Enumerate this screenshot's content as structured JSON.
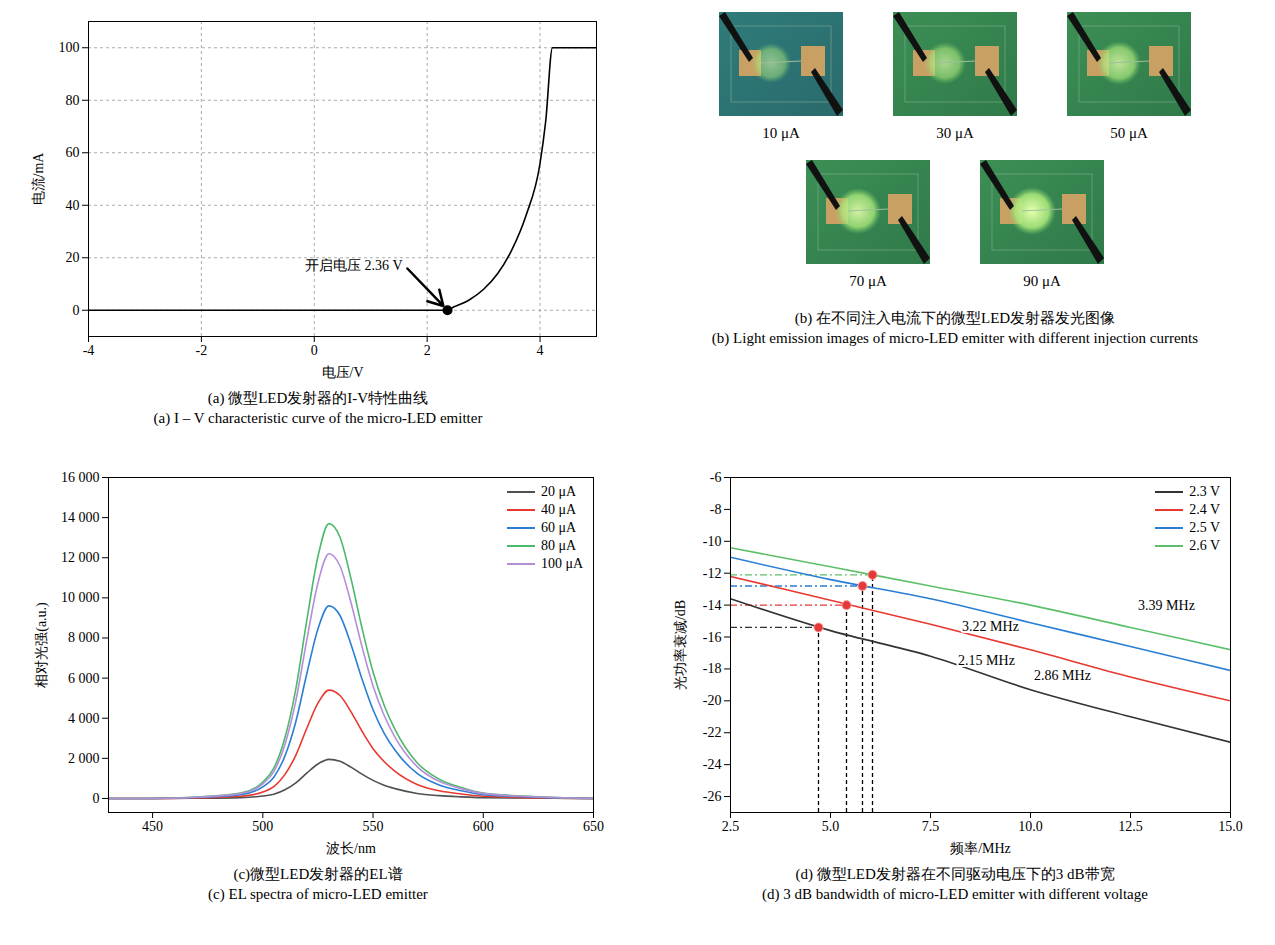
{
  "chart_data": [
    {
      "type": "line",
      "title": "(a) 微型LED发射器的I-V特性曲线",
      "subtitle": "(a) I – V characteristic curve of the micro-LED emitter",
      "xlabel": "电压/V",
      "ylabel": "电流/mA",
      "x": [
        -4,
        2.3,
        2.5,
        2.75,
        3.0,
        3.25,
        3.5,
        3.75,
        4.0,
        4.1,
        4.22,
        5
      ],
      "values": [
        0,
        0,
        1.5,
        4,
        8,
        14,
        23,
        36,
        56,
        72,
        100,
        100
      ],
      "color": "#000000",
      "xlim": [
        -4,
        5
      ],
      "xticks": [
        -4,
        -2,
        0,
        2,
        4
      ],
      "ylim": [
        -10,
        110
      ],
      "yticks": [
        0,
        20,
        40,
        60,
        80,
        100
      ],
      "grid": true,
      "annotations": [
        {
          "text": "开启电压 2.36 V",
          "x": 2.36,
          "y": 0,
          "text_x": 1.6,
          "text_y": 17
        }
      ]
    },
    {
      "type": "images",
      "title": "(b) 在不同注入电流下的微型LED发射器发光图像",
      "subtitle": "(b) Light emission images of micro-LED emitter with different injection currents",
      "images": [
        "10 μA",
        "30 μA",
        "50 μA",
        "70 μA",
        "90 μA"
      ]
    },
    {
      "type": "line",
      "title": "(c)微型LED发射器的EL谱",
      "subtitle": "(c) EL spectra of micro-LED emitter",
      "xlabel": "波长/nm",
      "ylabel": "相对光强(a.u.)",
      "x": [
        430,
        450,
        470,
        490,
        500,
        505,
        510,
        515,
        520,
        525,
        530,
        535,
        540,
        545,
        550,
        555,
        560,
        570,
        580,
        590,
        600,
        620,
        650
      ],
      "series": [
        {
          "name": "20 μA",
          "color": "#505050",
          "values": [
            0,
            0,
            10,
            40,
            120,
            210,
            430,
            780,
            1270,
            1720,
            1950,
            1850,
            1560,
            1210,
            900,
            660,
            490,
            250,
            140,
            80,
            40,
            20,
            0
          ]
        },
        {
          "name": "40 μA",
          "color": "#e8382f",
          "values": [
            0,
            0,
            30,
            110,
            320,
            590,
            1190,
            2160,
            3510,
            4750,
            5400,
            5130,
            4320,
            3350,
            2480,
            1840,
            1350,
            700,
            380,
            220,
            110,
            40,
            0
          ]
        },
        {
          "name": "60 μA",
          "color": "#2a7fd4",
          "values": [
            0,
            0,
            50,
            190,
            580,
            1060,
            2110,
            3840,
            6240,
            8450,
            9600,
            9120,
            7680,
            5950,
            4420,
            3260,
            2400,
            1250,
            670,
            380,
            190,
            80,
            0
          ]
        },
        {
          "name": "80 μA",
          "color": "#4cb86a",
          "values": [
            0,
            0,
            70,
            270,
            820,
            1510,
            3010,
            5480,
            8910,
            12060,
            13700,
            13020,
            10960,
            8490,
            6300,
            4660,
            3430,
            1780,
            960,
            550,
            270,
            110,
            0
          ]
        },
        {
          "name": "100 μA",
          "color": "#b58ed8",
          "values": [
            0,
            0,
            60,
            240,
            730,
            1340,
            2680,
            4880,
            7930,
            10740,
            12200,
            11590,
            9760,
            7560,
            5610,
            4150,
            3050,
            1590,
            850,
            490,
            240,
            100,
            0
          ]
        }
      ],
      "xlim": [
        430,
        650
      ],
      "xticks": [
        450,
        500,
        550,
        600,
        650
      ],
      "ylim": [
        -700,
        16000
      ],
      "yticks": [
        0,
        {
          "value": 2000,
          "label": "2 000"
        },
        {
          "value": 4000,
          "label": "4 000"
        },
        {
          "value": 6000,
          "label": "6 000"
        },
        {
          "value": 8000,
          "label": "8 000"
        },
        {
          "value": 10000,
          "label": "10 000"
        },
        {
          "value": 12000,
          "label": "12 000"
        },
        {
          "value": 14000,
          "label": "14 000"
        },
        {
          "value": 16000,
          "label": "16 000"
        }
      ],
      "grid": false,
      "legend": "top-right"
    },
    {
      "type": "line",
      "title": "(d) 微型LED发射器在不同驱动电压下的3 dB带宽",
      "subtitle": "(d) 3 dB bandwidth of micro-LED emitter with different voltage",
      "xlabel": "频率/MHz",
      "ylabel": "光功率衰减/dB",
      "x": [
        2.5,
        5,
        7.5,
        10,
        12.5,
        15
      ],
      "series": [
        {
          "name": "2.3 V",
          "color": "#333333",
          "values": [
            -13.6,
            -15.6,
            -17.2,
            -19.3,
            -21.0,
            -22.6
          ],
          "point": {
            "x": 4.7,
            "y": -15.4
          }
        },
        {
          "name": "2.4 V",
          "color": "#e8382f",
          "values": [
            -12.2,
            -13.7,
            -15.2,
            -16.8,
            -18.5,
            -20.0
          ],
          "point": {
            "x": 5.4,
            "y": -14.0
          }
        },
        {
          "name": "2.5 V",
          "color": "#2a7fd4",
          "values": [
            -11.0,
            -12.4,
            -13.6,
            -15.1,
            -16.6,
            -18.1
          ],
          "point": {
            "x": 5.8,
            "y": -12.8
          }
        },
        {
          "name": "2.6 V",
          "color": "#5cc06a",
          "values": [
            -10.4,
            -11.6,
            -12.8,
            -14.0,
            -15.4,
            -16.8
          ],
          "point": {
            "x": 6.05,
            "y": -12.1
          }
        }
      ],
      "xlim": [
        2.5,
        15
      ],
      "xticks": [
        2.5,
        {
          "value": 5,
          "label": "5.0"
        },
        7.5,
        {
          "value": 10,
          "label": "10.0"
        },
        12.5,
        {
          "value": 15,
          "label": "15.0"
        }
      ],
      "ylim": [
        -27,
        -6
      ],
      "yticks": [
        -26,
        -24,
        -22,
        -20,
        -18,
        -16,
        -14,
        -12,
        -10,
        -8,
        -6
      ],
      "grid": false,
      "legend": "top-right",
      "annotations": [
        {
          "text": "3.22 MHz",
          "x": 9.0,
          "y": -15.35
        },
        {
          "text": "3.39 MHz",
          "x": 13.4,
          "y": -14.0
        },
        {
          "text": "2.86 MHz",
          "x": 10.8,
          "y": -18.4
        },
        {
          "text": "2.15 MHz",
          "x": 8.9,
          "y": -17.5
        }
      ]
    }
  ]
}
